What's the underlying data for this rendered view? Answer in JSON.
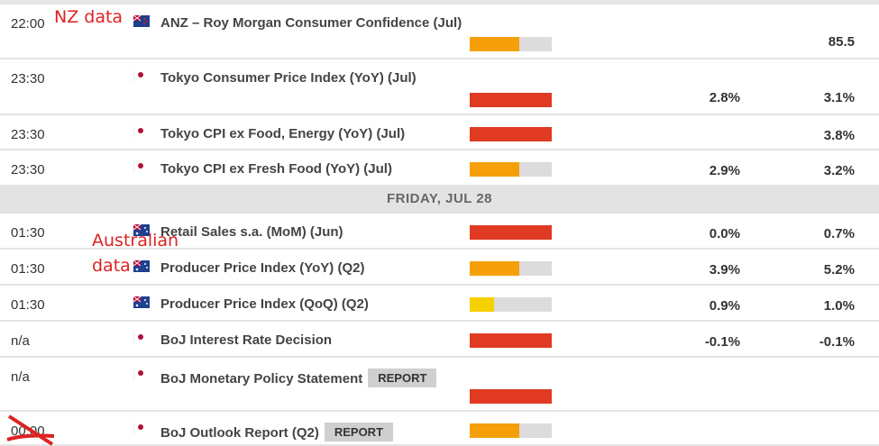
{
  "colors": {
    "high": "#e03a22",
    "medium": "#f5a00a",
    "low": "#f7d000",
    "bar_bg": "#dcdcdc",
    "annotation": "#dd2222"
  },
  "annotations": {
    "nz": "NZ data",
    "au_line1": "Australian",
    "au_line2": "data"
  },
  "date_header": "FRIDAY, JUL 28",
  "events_before": [
    {
      "time": "22:00",
      "flag": "nz-flag",
      "title": "ANZ – Roy Morgan Consumer Confidence (Jul)",
      "impact": "medium",
      "impact_level": 0.6,
      "forecast": "",
      "previous": "85.5"
    },
    {
      "time": "23:30",
      "flag": "japan-flag",
      "title": "Tokyo Consumer Price Index (YoY) (Jul)",
      "impact": "high",
      "impact_level": 1.0,
      "forecast": "2.8%",
      "previous": "3.1%"
    },
    {
      "time": "23:30",
      "flag": "japan-flag",
      "title": "Tokyo CPI ex Food, Energy (YoY) (Jul)",
      "impact": "high",
      "impact_level": 1.0,
      "forecast": "",
      "previous": "3.8%"
    },
    {
      "time": "23:30",
      "flag": "japan-flag",
      "title": "Tokyo CPI ex Fresh Food (YoY) (Jul)",
      "impact": "medium",
      "impact_level": 0.6,
      "forecast": "2.9%",
      "previous": "3.2%"
    }
  ],
  "events_after": [
    {
      "time": "01:30",
      "flag": "australia-flag",
      "title": "Retail Sales s.a. (MoM) (Jun)",
      "impact": "high",
      "impact_level": 1.0,
      "forecast": "0.0%",
      "previous": "0.7%"
    },
    {
      "time": "01:30",
      "flag": "australia-flag",
      "title": "Producer Price Index (YoY) (Q2)",
      "impact": "medium",
      "impact_level": 0.6,
      "forecast": "3.9%",
      "previous": "5.2%"
    },
    {
      "time": "01:30",
      "flag": "australia-flag",
      "title": "Producer Price Index (QoQ) (Q2)",
      "impact": "low",
      "impact_level": 0.3,
      "forecast": "0.9%",
      "previous": "1.0%"
    },
    {
      "time": "n/a",
      "flag": "japan-flag",
      "title": "BoJ Interest Rate Decision",
      "impact": "high",
      "impact_level": 1.0,
      "forecast": "-0.1%",
      "previous": "-0.1%"
    },
    {
      "time": "n/a",
      "flag": "japan-flag",
      "title": "BoJ Monetary Policy Statement",
      "report": "REPORT",
      "impact": "high",
      "impact_level": 1.0,
      "forecast": "",
      "previous": ""
    },
    {
      "time": "00:00",
      "flag": "japan-flag",
      "title": "BoJ Outlook Report (Q2)",
      "report": "REPORT",
      "impact": "medium",
      "impact_level": 0.6,
      "forecast": "",
      "previous": "",
      "time_crossed_out": true
    }
  ]
}
